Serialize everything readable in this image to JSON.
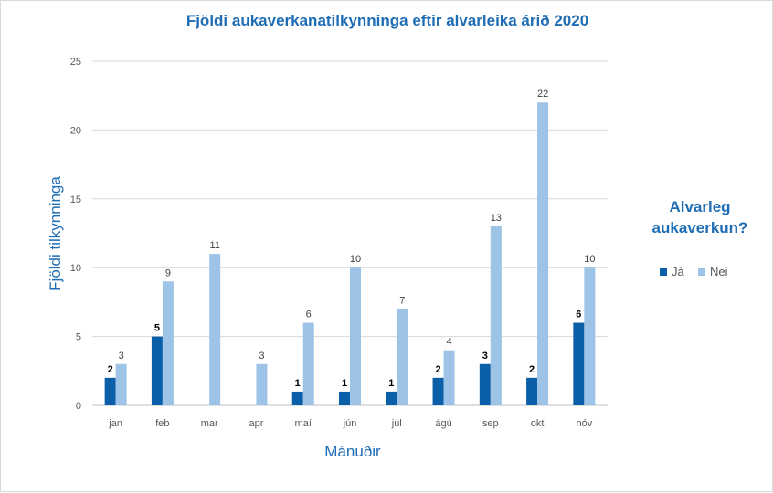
{
  "chart_data": {
    "type": "bar",
    "title": "Fjöldi aukaverkanatilkynninga eftir alvarleika árið 2020",
    "xlabel": "Mánuðir",
    "ylabel": "Fjöldi tilkynninga",
    "ylim": [
      0,
      25
    ],
    "yticks": [
      "0",
      "5",
      "10",
      "15",
      "20",
      "25"
    ],
    "grid": true,
    "legend_title": "Alvarleg aukaverkun?",
    "legend_position": "right",
    "categories": [
      "jan",
      "feb",
      "mar",
      "apr",
      "maí",
      "jún",
      "júl",
      "ágú",
      "sep",
      "okt",
      "nóv"
    ],
    "series": [
      {
        "name": "Já",
        "color": "#0b5ea8",
        "values": [
          2,
          5,
          null,
          null,
          1,
          1,
          1,
          2,
          3,
          2,
          6
        ]
      },
      {
        "name": "Nei",
        "color": "#9dc3e6",
        "values": [
          3,
          9,
          11,
          3,
          6,
          10,
          7,
          4,
          13,
          22,
          10
        ]
      }
    ]
  }
}
